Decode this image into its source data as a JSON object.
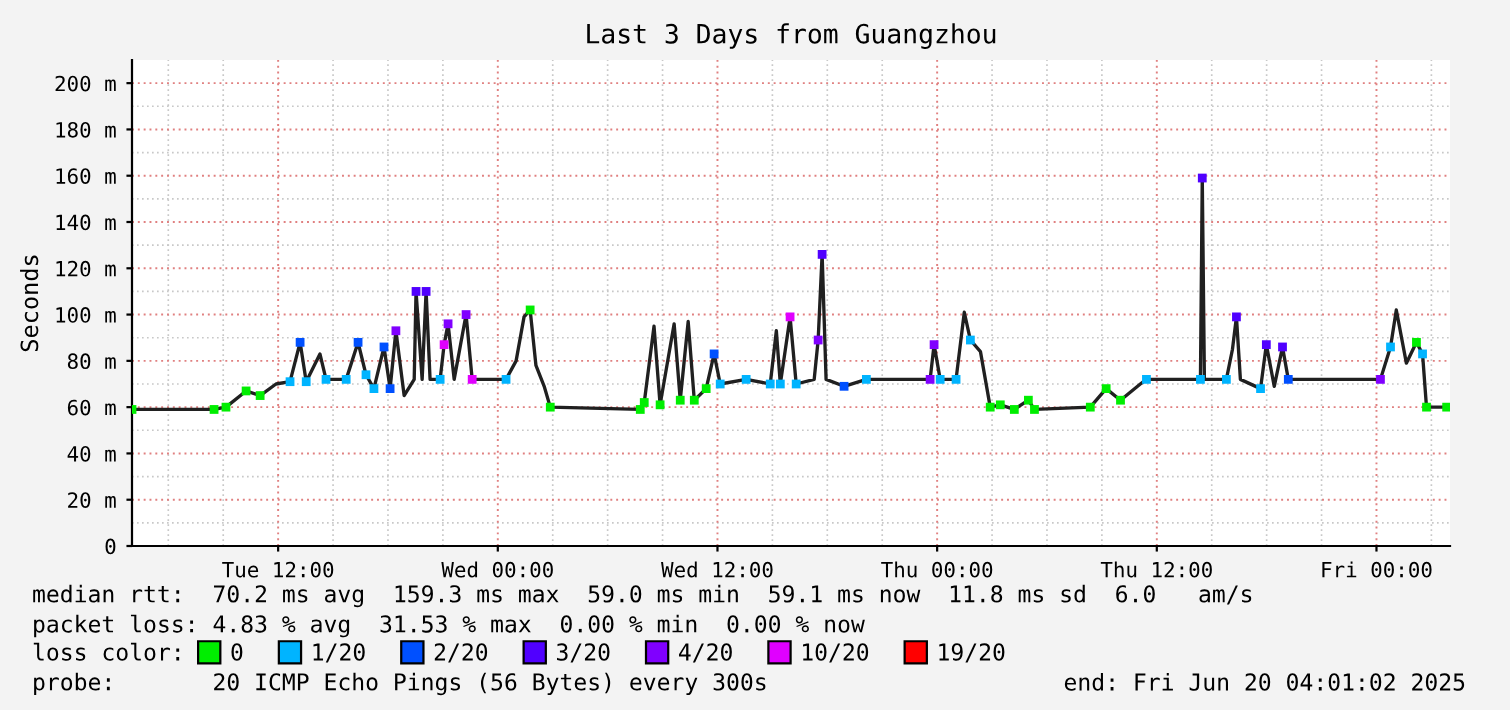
{
  "chart_data": {
    "type": "line",
    "title": "Last 3 Days from Guangzhou",
    "ylabel": "Seconds",
    "xlim": [
      "2025-06-17T04:01",
      "2025-06-20T04:01"
    ],
    "xticks": [
      {
        "value": "2025-06-17T12:00",
        "label": "Tue 12:00"
      },
      {
        "value": "2025-06-18T00:00",
        "label": "Wed 00:00"
      },
      {
        "value": "2025-06-18T12:00",
        "label": "Wed 12:00"
      },
      {
        "value": "2025-06-19T00:00",
        "label": "Thu 00:00"
      },
      {
        "value": "2025-06-19T12:00",
        "label": "Thu 12:00"
      },
      {
        "value": "2025-06-20T00:00",
        "label": "Fri 00:00"
      }
    ],
    "ylim": [
      0,
      210
    ],
    "yticks": [
      0,
      {
        "value": 20,
        "label": "20 m"
      },
      {
        "value": 40,
        "label": "40 m"
      },
      {
        "value": 60,
        "label": "60 m"
      },
      {
        "value": 80,
        "label": "80 m"
      },
      {
        "value": 100,
        "label": "100 m"
      },
      {
        "value": 120,
        "label": "120 m"
      },
      {
        "value": 140,
        "label": "140 m"
      },
      {
        "value": 160,
        "label": "160 m"
      },
      {
        "value": 180,
        "label": "180 m"
      },
      {
        "value": 200,
        "label": "200 m"
      }
    ],
    "grid": true,
    "legend": "bottom",
    "legend_title": "loss color:",
    "series": [
      {
        "color": "#202020",
        "x": [
          "2025-06-17T04:01",
          "2025-06-17T08:30",
          "2025-06-17T09:09",
          "2025-06-17T10:15",
          "2025-06-17T11:01",
          "2025-06-17T11:53",
          "2025-06-17T12:39",
          "2025-06-17T13:12",
          "2025-06-17T13:32",
          "2025-06-17T14:17",
          "2025-06-17T14:37",
          "2025-06-17T15:43",
          "2025-06-17T16:22",
          "2025-06-17T16:48",
          "2025-06-17T17:14",
          "2025-06-17T17:47",
          "2025-06-17T18:07",
          "2025-06-17T18:26",
          "2025-06-17T18:53",
          "2025-06-17T19:26",
          "2025-06-17T19:32",
          "2025-06-17T19:52",
          "2025-06-17T20:05",
          "2025-06-17T20:18",
          "2025-06-17T20:51",
          "2025-06-17T21:04",
          "2025-06-17T21:17",
          "2025-06-17T21:37",
          "2025-06-17T22:16",
          "2025-06-17T22:36",
          "2025-06-18T00:27",
          "2025-06-18T01:00",
          "2025-06-18T01:26",
          "2025-06-18T01:46",
          "2025-06-18T02:05",
          "2025-06-18T02:32",
          "2025-06-18T02:52",
          "2025-06-18T07:47",
          "2025-06-18T08:00",
          "2025-06-18T08:32",
          "2025-06-18T08:52",
          "2025-06-18T09:38",
          "2025-06-18T09:58",
          "2025-06-18T10:24",
          "2025-06-18T10:44",
          "2025-06-18T11:23",
          "2025-06-18T11:49",
          "2025-06-18T12:09",
          "2025-06-18T13:34",
          "2025-06-18T14:53",
          "2025-06-18T15:13",
          "2025-06-18T15:26",
          "2025-06-18T15:58",
          "2025-06-18T16:18",
          "2025-06-18T17:17",
          "2025-06-18T17:30",
          "2025-06-18T17:43",
          "2025-06-18T17:56",
          "2025-06-18T18:55",
          "2025-06-18T20:08",
          "2025-06-18T23:37",
          "2025-06-18T23:50",
          "2025-06-19T00:10",
          "2025-06-19T01:02",
          "2025-06-19T01:29",
          "2025-06-19T01:49",
          "2025-06-19T02:22",
          "2025-06-19T02:54",
          "2025-06-19T03:27",
          "2025-06-19T04:13",
          "2025-06-19T04:59",
          "2025-06-19T05:19",
          "2025-06-19T08:22",
          "2025-06-19T09:14",
          "2025-06-19T10:01",
          "2025-06-19T11:06",
          "2025-06-19T11:26",
          "2025-06-19T14:23",
          "2025-06-19T14:29",
          "2025-06-19T14:36",
          "2025-06-19T15:48",
          "2025-06-19T16:08",
          "2025-06-19T16:21",
          "2025-06-19T16:34",
          "2025-06-19T17:40",
          "2025-06-19T17:59",
          "2025-06-19T18:25",
          "2025-06-19T18:52",
          "2025-06-19T19:11",
          "2025-06-20T00:13",
          "2025-06-20T00:46",
          "2025-06-20T01:05",
          "2025-06-20T01:38",
          "2025-06-20T02:11",
          "2025-06-20T02:31",
          "2025-06-20T02:44",
          "2025-06-20T03:50"
        ],
        "values": [
          59,
          59,
          60,
          67,
          65,
          70,
          71,
          88,
          71,
          83,
          72,
          72,
          88,
          74,
          68,
          86,
          68,
          93,
          65,
          72,
          110,
          72,
          110,
          72,
          72,
          87,
          96,
          72,
          100,
          72,
          72,
          80,
          99,
          102,
          78,
          69,
          60,
          59,
          62,
          95,
          61,
          96,
          63,
          97,
          63,
          68,
          83,
          70,
          72,
          70,
          93,
          70,
          99,
          70,
          72,
          89,
          126,
          72,
          69,
          72,
          72,
          87,
          72,
          72,
          101,
          89,
          84,
          60,
          61,
          59,
          63,
          59,
          60,
          68,
          63,
          70,
          72,
          72,
          159,
          72,
          72,
          85,
          99,
          72,
          68,
          87,
          69,
          86,
          72,
          72,
          86,
          102,
          79,
          88,
          83,
          60,
          60
        ]
      },
      {
        "type": "scatter",
        "name": "0",
        "color": "#00ee00",
        "x": [
          "2025-06-17T04:01",
          "2025-06-17T08:30",
          "2025-06-17T09:09",
          "2025-06-17T10:15",
          "2025-06-17T11:01",
          "2025-06-18T01:46",
          "2025-06-18T02:52",
          "2025-06-18T07:47",
          "2025-06-18T08:00",
          "2025-06-18T08:52",
          "2025-06-18T09:58",
          "2025-06-18T10:44",
          "2025-06-18T11:23",
          "2025-06-19T02:54",
          "2025-06-19T03:27",
          "2025-06-19T04:13",
          "2025-06-19T04:59",
          "2025-06-19T05:19",
          "2025-06-19T08:22",
          "2025-06-19T09:14",
          "2025-06-19T10:01",
          "2025-06-20T02:11",
          "2025-06-20T02:44",
          "2025-06-20T03:50"
        ],
        "values": [
          59,
          59,
          60,
          67,
          65,
          102,
          60,
          59,
          62,
          61,
          63,
          63,
          68,
          60,
          61,
          59,
          63,
          59,
          60,
          68,
          63,
          88,
          60,
          60
        ]
      },
      {
        "type": "scatter",
        "name": "1/20",
        "color": "#00b4ff",
        "x": [
          "2025-06-17T12:39",
          "2025-06-17T13:32",
          "2025-06-17T14:37",
          "2025-06-17T15:43",
          "2025-06-17T16:48",
          "2025-06-17T17:14",
          "2025-06-17T20:51",
          "2025-06-18T00:27",
          "2025-06-18T12:09",
          "2025-06-18T13:34",
          "2025-06-18T14:53",
          "2025-06-18T15:26",
          "2025-06-18T16:18",
          "2025-06-18T20:08",
          "2025-06-19T00:10",
          "2025-06-19T01:02",
          "2025-06-19T01:49",
          "2025-06-19T11:26",
          "2025-06-19T14:23",
          "2025-06-19T15:48",
          "2025-06-19T17:40",
          "2025-06-20T00:46",
          "2025-06-20T02:31"
        ],
        "values": [
          71,
          71,
          72,
          72,
          74,
          68,
          72,
          72,
          70,
          72,
          70,
          70,
          70,
          72,
          72,
          72,
          89,
          72,
          72,
          72,
          68,
          86,
          83
        ]
      },
      {
        "type": "scatter",
        "name": "2/20",
        "color": "#0050ff",
        "x": [
          "2025-06-17T13:12",
          "2025-06-17T16:22",
          "2025-06-17T17:47",
          "2025-06-17T18:07",
          "2025-06-18T11:49",
          "2025-06-18T18:55",
          "2025-06-19T19:11"
        ],
        "values": [
          88,
          88,
          86,
          68,
          83,
          69,
          72
        ]
      },
      {
        "type": "scatter",
        "name": "3/20",
        "color": "#5000ff",
        "x": [
          "2025-06-17T19:32",
          "2025-06-17T20:05",
          "2025-06-18T17:43",
          "2025-06-19T14:29",
          "2025-06-19T16:21",
          "2025-06-19T17:59",
          "2025-06-19T18:52"
        ],
        "values": [
          110,
          110,
          126,
          159,
          99,
          87,
          86
        ]
      },
      {
        "type": "scatter",
        "name": "4/20",
        "color": "#8000ff",
        "x": [
          "2025-06-17T18:26",
          "2025-06-17T21:17",
          "2025-06-17T22:16",
          "2025-06-18T17:30",
          "2025-06-18T23:37",
          "2025-06-18T23:50",
          "2025-06-20T00:13"
        ],
        "values": [
          93,
          96,
          100,
          89,
          72,
          87,
          72
        ]
      },
      {
        "type": "scatter",
        "name": "10/20",
        "color": "#e000ff",
        "x": [
          "2025-06-17T21:04",
          "2025-06-17T22:36",
          "2025-06-18T15:58"
        ],
        "values": [
          87,
          72,
          99
        ]
      },
      {
        "type": "scatter",
        "name": "19/20",
        "color": "#ff0000"
      }
    ],
    "annotations": [
      "median rtt:  70.2 ms avg  159.3 ms max  59.0 ms min  59.1 ms now  11.8 ms sd  6.0   am/s",
      "packet loss: 4.83 % avg  31.53 % max  0.00 % min  0.00 % now",
      "probe:       20 ICMP Echo Pings (56 Bytes) every 300s",
      "end: Fri Jun 20 04:01:02 2025"
    ]
  }
}
